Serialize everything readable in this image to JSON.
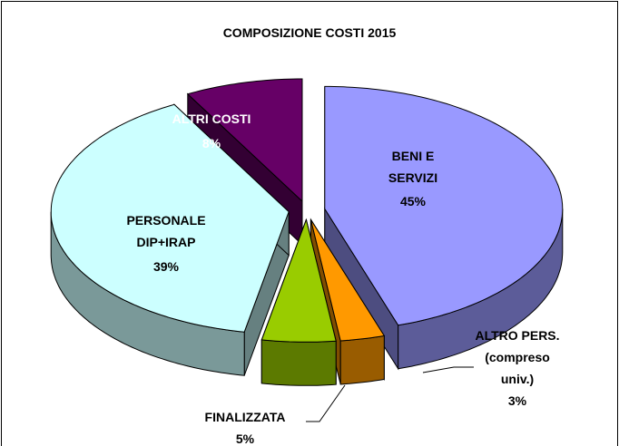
{
  "chart_data": {
    "type": "pie",
    "title": "COMPOSIZIONE COSTI 2015",
    "categories": [
      "BENI E SERVIZI",
      "ALTRO PERS. (compreso univ.)",
      "FINALIZZATA",
      "PERSONALE DIP+IRAP",
      "ALTRI COSTI"
    ],
    "values": [
      45,
      3,
      5,
      39,
      8
    ],
    "value_labels": [
      "45%",
      "3%",
      "5%",
      "39%",
      "8%"
    ],
    "colors": [
      "#9999ff",
      "#ff9900",
      "#99cc00",
      "#ccffff",
      "#660066"
    ]
  }
}
